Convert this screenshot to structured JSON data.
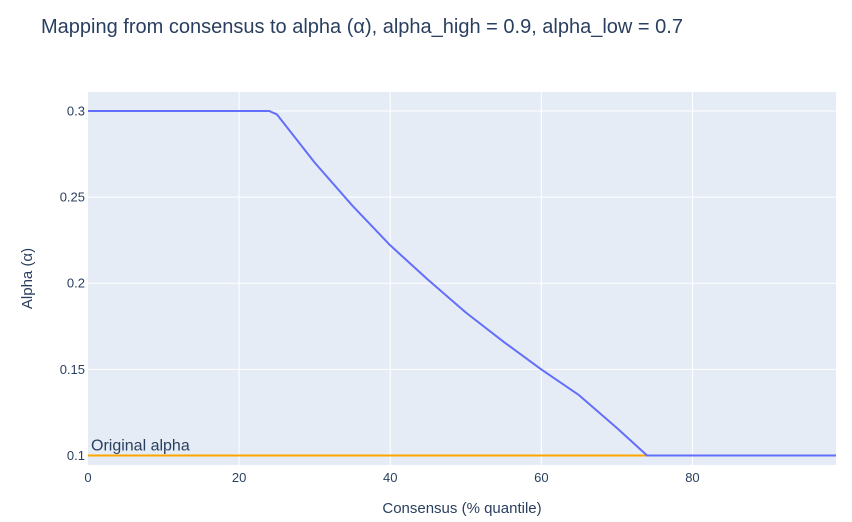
{
  "chart_data": {
    "type": "line",
    "title": "Mapping from consensus to alpha (α), alpha_high = 0.9, alpha_low = 0.7",
    "xlabel": "Consensus (% quantile)",
    "ylabel": "Alpha (α)",
    "xlim": [
      0,
      99
    ],
    "ylim": [
      0.0945,
      0.311
    ],
    "x_ticks": [
      0,
      20,
      40,
      60,
      80
    ],
    "x_tick_labels": [
      "0",
      "20",
      "40",
      "60",
      "80"
    ],
    "y_ticks": [
      0.1,
      0.15,
      0.2,
      0.25,
      0.3
    ],
    "y_tick_labels": [
      "0.1",
      "0.15",
      "0.2",
      "0.25",
      "0.3"
    ],
    "grid": true,
    "background": "#e5ecf6",
    "series": [
      {
        "color": "#636efa",
        "x": [
          0,
          10,
          20,
          24,
          25,
          30,
          35,
          40,
          45,
          50,
          55,
          60,
          65,
          70,
          74,
          75,
          80,
          85,
          90,
          95,
          99
        ],
        "y": [
          0.3,
          0.3,
          0.3,
          0.3,
          0.298,
          0.27,
          0.245,
          0.222,
          0.202,
          0.183,
          0.166,
          0.15,
          0.135,
          0.116,
          0.1,
          0.1,
          0.1,
          0.1,
          0.1,
          0.1,
          0.1
        ]
      }
    ],
    "reference_lines": [
      {
        "y": 0.1,
        "color": "#ffa500",
        "annotation": "Original alpha"
      }
    ]
  }
}
